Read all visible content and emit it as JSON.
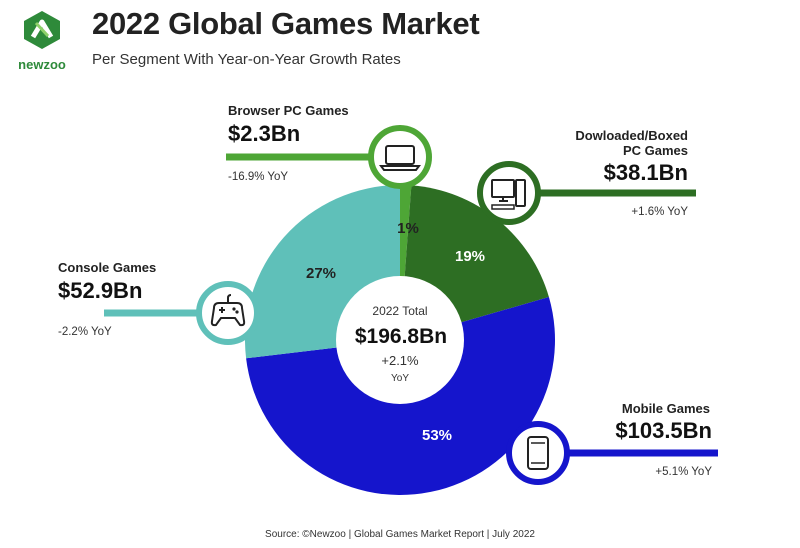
{
  "brand": {
    "name": "newzoo",
    "color": "#2e8a3a"
  },
  "header": {
    "title": "2022 Global Games Market",
    "subtitle": "Per Segment With Year-on-Year Growth Rates"
  },
  "center": {
    "label": "2022 Total",
    "value": "$196.8Bn",
    "growth": "+2.1%",
    "growth_unit": "YoY"
  },
  "segments": [
    {
      "name": "Browser PC Games",
      "value": "$2.3Bn",
      "yoy": "-16.9% YoY",
      "share_label": "1%",
      "icon": "laptop-icon",
      "color": "#4ea636"
    },
    {
      "name": "Dowloaded/Boxed",
      "name2": "PC Games",
      "value": "$38.1Bn",
      "yoy": "+1.6% YoY",
      "share_label": "19%",
      "icon": "desktop-pc-icon",
      "color": "#2d6e23"
    },
    {
      "name": "Mobile Games",
      "value": "$103.5Bn",
      "yoy": "+5.1% YoY",
      "share_label": "53%",
      "icon": "smartphone-icon",
      "color": "#1515cc"
    },
    {
      "name": "Console Games",
      "value": "$52.9Bn",
      "yoy": "-2.2% YoY",
      "share_label": "27%",
      "icon": "gamepad-icon",
      "color": "#5fc0b9"
    }
  ],
  "footer": {
    "source": "Source: ©Newzoo | Global Games Market Report | July 2022"
  },
  "chart_data": {
    "type": "pie",
    "title": "2022 Global Games Market",
    "subtitle": "Per Segment With Year-on-Year Growth Rates",
    "categories": [
      "Browser PC Games",
      "Dowloaded/Boxed PC Games",
      "Mobile Games",
      "Console Games"
    ],
    "values": [
      2.3,
      38.1,
      103.5,
      52.9
    ],
    "shares_pct": [
      1,
      19,
      53,
      27
    ],
    "yoy_growth_pct": [
      -16.9,
      1.6,
      5.1,
      -2.2
    ],
    "unit": "$Bn",
    "total": 196.8,
    "total_growth_pct": 2.1,
    "colors": [
      "#4ea636",
      "#2d6e23",
      "#1515cc",
      "#5fc0b9"
    ],
    "donut": true
  }
}
